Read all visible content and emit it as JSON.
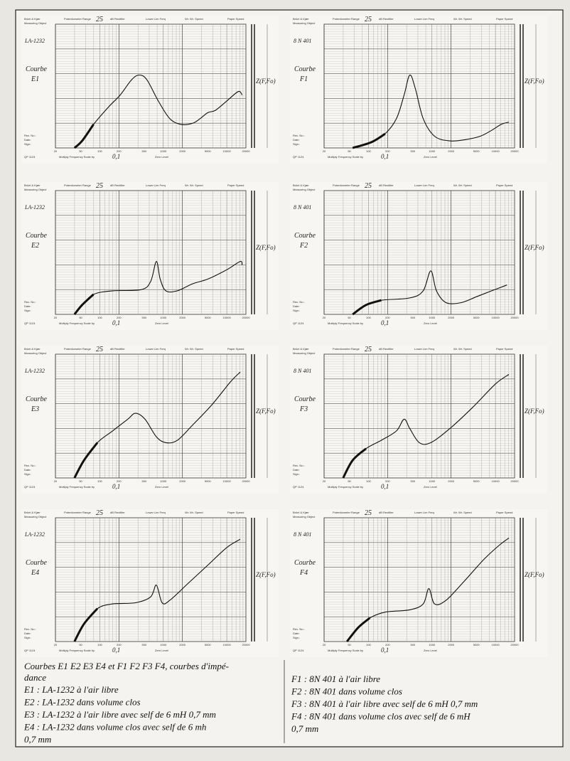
{
  "form": {
    "brand": "Brüel & Kjær",
    "measuring_object": "Measuring Object",
    "potentiometer_range": "Potentiometer Range",
    "rectifier": "dB Rectifier",
    "lower_lim": "Lower Lim Freq",
    "writing_speed": "Wr. Wr. Speed",
    "paper_speed": "Paper Speed",
    "multiply": "Multiply Frequency Scale by",
    "zero_level": "Zero Level",
    "rec_no": "Rec. No.:",
    "date": "Date:",
    "sign": "Sign.:",
    "form_no": "QP 1124",
    "freq_ticks": [
      "20",
      "50",
      "100",
      "200",
      "500",
      "1000",
      "2000",
      "5000",
      "10000",
      "20000"
    ]
  },
  "panels": [
    {
      "model": "LA-1232",
      "curve_label": "Courbe",
      "curve_id": "E1",
      "range": "25",
      "impedance_label": "Z(F,Fo)",
      "scale": "0,1"
    },
    {
      "model": "LA-1232",
      "curve_label": "Courbe",
      "curve_id": "E2",
      "range": "25",
      "impedance_label": "Z(F,Fo)",
      "scale": "0,1"
    },
    {
      "model": "LA-1232",
      "curve_label": "Courbe",
      "curve_id": "E3",
      "range": "25",
      "impedance_label": "Z(F,Fo)",
      "scale": "0,1"
    },
    {
      "model": "LA-1232",
      "curve_label": "Courbe",
      "curve_id": "E4",
      "range": "25",
      "impedance_label": "Z(F,Fo)",
      "scale": "0,1"
    },
    {
      "model": "8 N 401",
      "curve_label": "Courbe",
      "curve_id": "F1",
      "range": "25",
      "impedance_label": "Z(F,Fo)",
      "scale": "0,1"
    },
    {
      "model": "8 N 401",
      "curve_label": "Courbe",
      "curve_id": "F2",
      "range": "25",
      "impedance_label": "Z(F,Fo)",
      "scale": "0,1"
    },
    {
      "model": "8 N 401",
      "curve_label": "Courbe",
      "curve_id": "F3",
      "range": "25",
      "impedance_label": "Z(F,Fo)",
      "scale": "0,1"
    },
    {
      "model": "8 N 401",
      "curve_label": "Courbe",
      "curve_id": "F4",
      "range": "25",
      "impedance_label": "Z(F,Fo)",
      "scale": "0,1"
    }
  ],
  "caption": {
    "title": "Courbes E1 E2 E3 E4 et F1 F2 F3 F4, courbes d'impé-",
    "title_cont": "dance",
    "left": [
      "E1 : LA-1232 à l'air libre",
      "E2 : LA-1232 dans volume clos",
      "E3 : LA-1232 à l'air libre avec self de 6 mH 0,7 mm",
      "E4 : LA-1232 dans volume clos avec self de 6 mh",
      "0,7 mm"
    ],
    "right": [
      "F1 : 8N 401 à l'air libre",
      "F2 : 8N 401 dans volume clos",
      "F3 : 8N 401 à l'air libre avec self de 6 mH 0,7 mm",
      "F4 : 8N 401 dans volume clos avec self de 6 mH",
      "0,7 mm"
    ]
  }
}
